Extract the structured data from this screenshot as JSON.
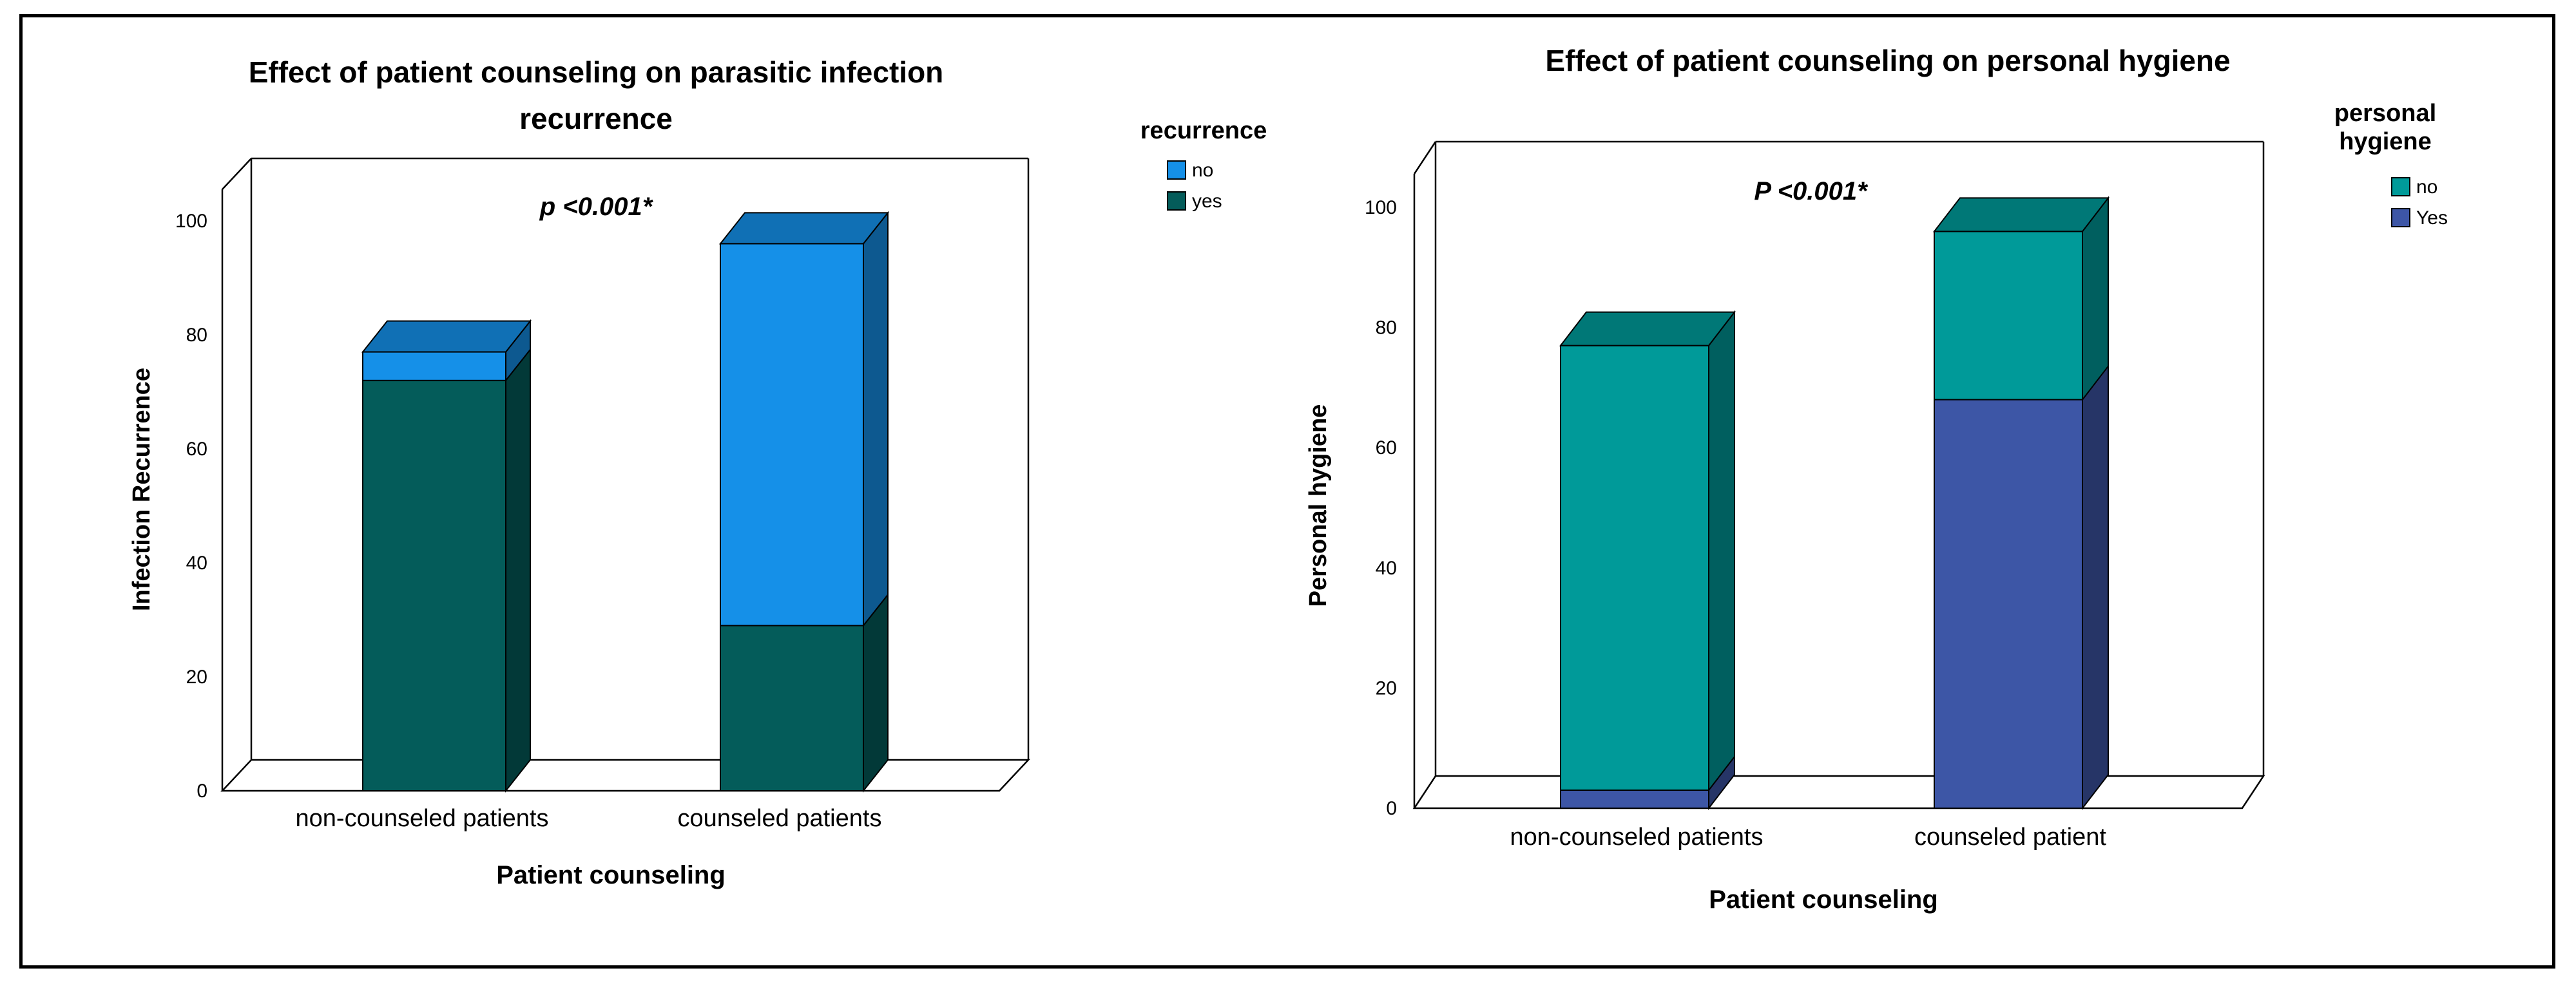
{
  "chart_data": [
    {
      "type": "bar",
      "stacked": true,
      "title": "Effect of patient counseling on parasitic infection",
      "title_line2": "recurrence",
      "xlabel": "Patient counseling",
      "ylabel": "Infection Recurrence",
      "ylim": [
        0,
        100
      ],
      "yticks": [
        "0",
        "20",
        "40",
        "60",
        "80",
        "100"
      ],
      "categories": [
        "non-counseled patients",
        "counseled patients"
      ],
      "legend_title": "recurrence",
      "annotation": "p <0.001*",
      "series": [
        {
          "name": "yes",
          "color": "#045c5a",
          "values": [
            72,
            29
          ]
        },
        {
          "name": "no",
          "color": "#1590e8",
          "values": [
            5,
            67
          ]
        }
      ]
    },
    {
      "type": "bar",
      "stacked": true,
      "title": "Effect of patient counseling on personal hygiene",
      "xlabel": "Patient counseling",
      "ylabel": "Personal hygiene",
      "ylim": [
        0,
        100
      ],
      "yticks": [
        "0",
        "20",
        "40",
        "60",
        "80",
        "100"
      ],
      "categories": [
        "non-counseled patients",
        "counseled patient"
      ],
      "legend_title": "personal",
      "legend_title_line2": "hygiene",
      "annotation": "P <0.001*",
      "series": [
        {
          "name": "Yes",
          "color": "#3d56a6",
          "values": [
            3,
            68
          ]
        },
        {
          "name": "no",
          "color": "#009a99",
          "values": [
            74,
            28
          ]
        }
      ]
    }
  ]
}
